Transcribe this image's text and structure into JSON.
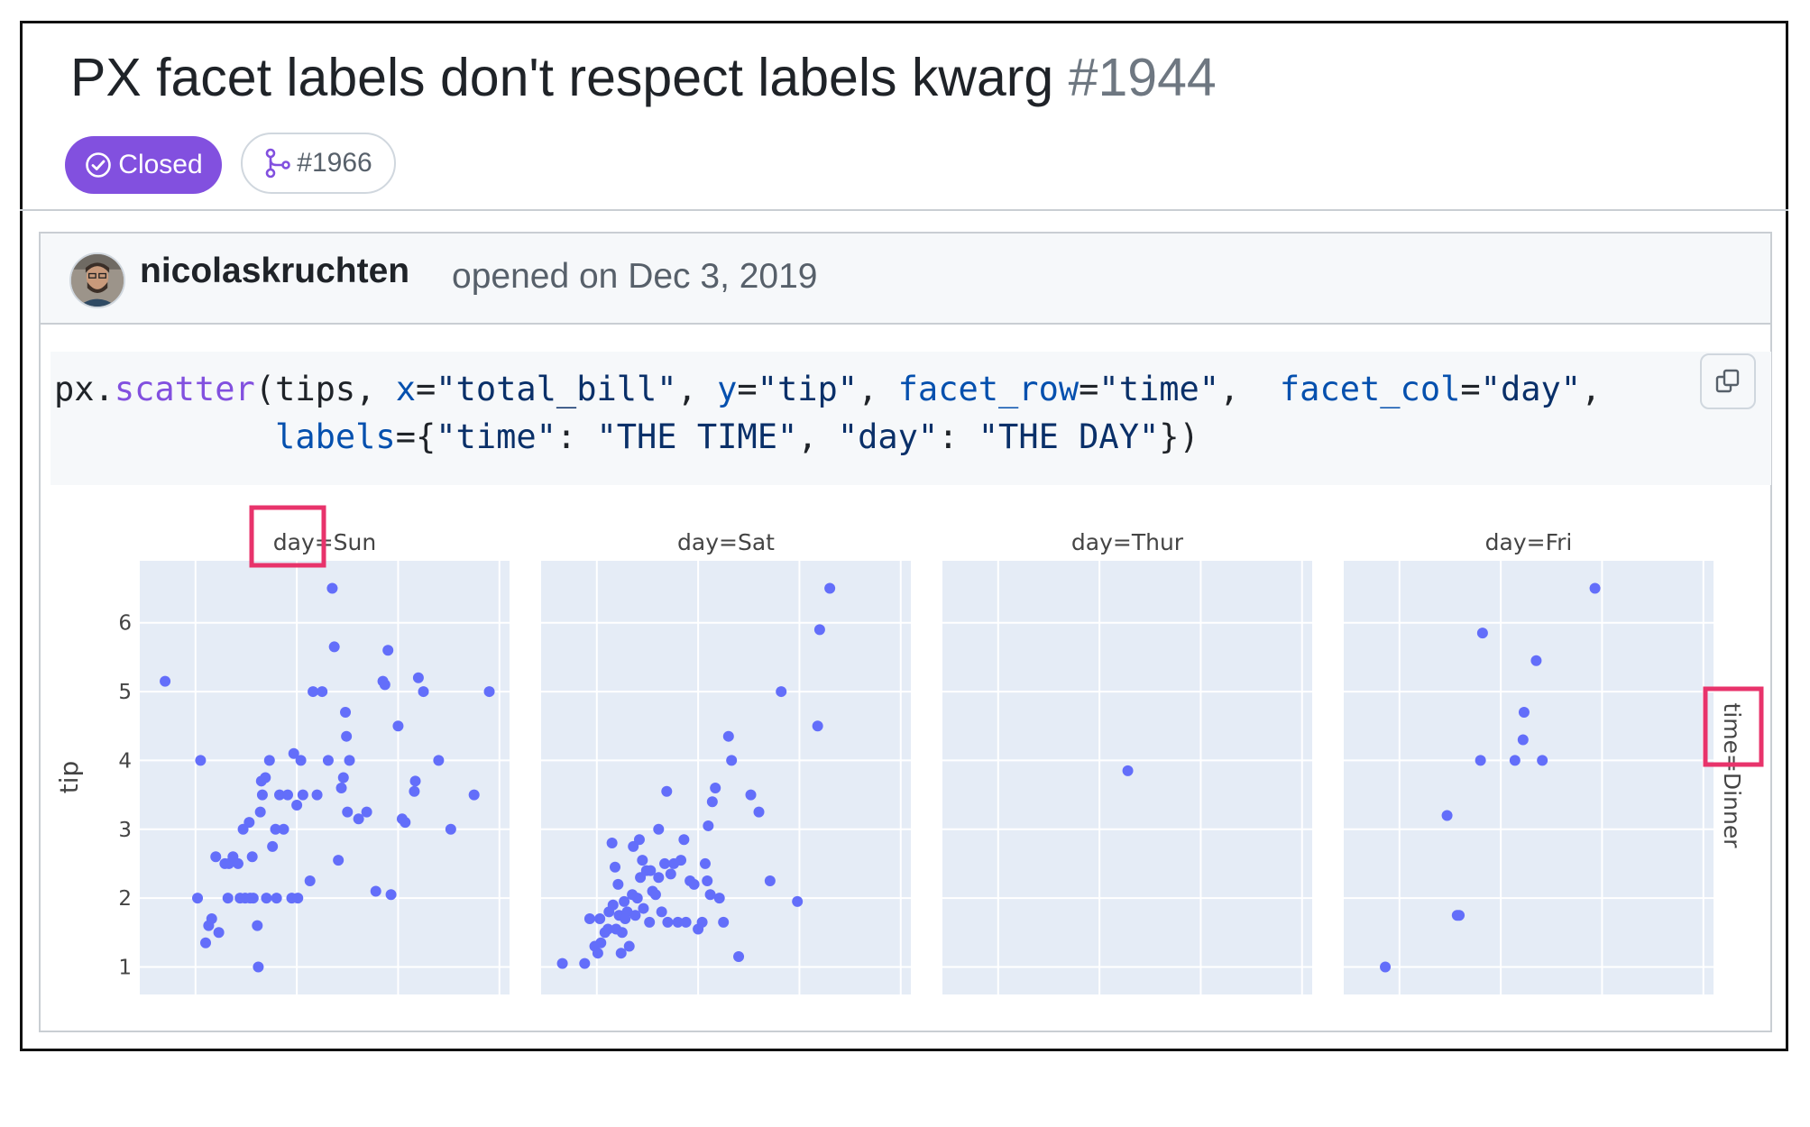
{
  "issue": {
    "title": "PX facet labels don't respect labels kwarg",
    "number": "#1944",
    "state": "Closed",
    "linked_pr": "#1966"
  },
  "comment": {
    "author": "nicolaskruchten",
    "opened_text": "opened on Dec 3, 2019"
  },
  "code": {
    "line1": [
      {
        "t": "px.",
        "c": ""
      },
      {
        "t": "scatter",
        "c": "fn"
      },
      {
        "t": "(tips, ",
        "c": ""
      },
      {
        "t": "x",
        "c": "attr"
      },
      {
        "t": "=",
        "c": ""
      },
      {
        "t": "\"total_bill\"",
        "c": "str"
      },
      {
        "t": ", ",
        "c": ""
      },
      {
        "t": "y",
        "c": "attr"
      },
      {
        "t": "=",
        "c": ""
      },
      {
        "t": "\"tip\"",
        "c": "str"
      },
      {
        "t": ", ",
        "c": ""
      },
      {
        "t": "facet_row",
        "c": "attr"
      },
      {
        "t": "=",
        "c": ""
      },
      {
        "t": "\"time\"",
        "c": "str"
      },
      {
        "t": ",  ",
        "c": ""
      },
      {
        "t": "facet_col",
        "c": "attr"
      },
      {
        "t": "=",
        "c": ""
      },
      {
        "t": "\"day\"",
        "c": "str"
      },
      {
        "t": ",",
        "c": ""
      }
    ],
    "line2": [
      {
        "t": "           ",
        "c": ""
      },
      {
        "t": "labels",
        "c": "attr"
      },
      {
        "t": "={",
        "c": ""
      },
      {
        "t": "\"time\"",
        "c": "str"
      },
      {
        "t": ": ",
        "c": ""
      },
      {
        "t": "\"THE TIME\"",
        "c": "str"
      },
      {
        "t": ", ",
        "c": ""
      },
      {
        "t": "\"day\"",
        "c": "str"
      },
      {
        "t": ": ",
        "c": ""
      },
      {
        "t": "\"THE DAY\"",
        "c": "str"
      },
      {
        "t": "})",
        "c": ""
      }
    ]
  },
  "colors": {
    "accent": "#8250df",
    "plot_bg": "#e5ecf6",
    "marker": "#636efa",
    "highlight": "#e8336b"
  },
  "icons": {
    "state": "check-circle-icon",
    "pr": "git-pull-request-icon",
    "copy": "copy-icon"
  },
  "chart_data": {
    "type": "scatter",
    "ylabel": "tip",
    "row_label": "time=Dinner",
    "ylim": [
      0.6,
      6.9
    ],
    "yticks": [
      "1",
      "2",
      "3",
      "4",
      "5",
      "6"
    ],
    "facets": [
      {
        "title": "day=Sun",
        "points": [
          [
            17,
            5.15
          ],
          [
            20.5,
            4
          ],
          [
            21,
            1.35
          ],
          [
            21.3,
            1.6
          ],
          [
            21.6,
            1.7
          ],
          [
            22,
            2.6
          ],
          [
            20.2,
            2
          ],
          [
            23.3,
            2.5
          ],
          [
            23.7,
            2.6
          ],
          [
            24.2,
            2.5
          ],
          [
            24.9,
            2
          ],
          [
            25.3,
            3.1
          ],
          [
            25.7,
            2
          ],
          [
            26.1,
            1.6
          ],
          [
            26.5,
            3.7
          ],
          [
            27,
            2
          ],
          [
            27.3,
            4
          ],
          [
            27.6,
            2.75
          ],
          [
            27.9,
            3
          ],
          [
            28.3,
            3.5
          ],
          [
            28.7,
            3
          ],
          [
            29.1,
            3.5
          ],
          [
            29.5,
            2
          ],
          [
            30.1,
            2
          ],
          [
            30.6,
            3.5
          ],
          [
            31.3,
            2.25
          ],
          [
            31.6,
            5
          ],
          [
            32,
            3.5
          ],
          [
            32.5,
            5
          ],
          [
            33.1,
            4
          ],
          [
            33.5,
            6.5
          ],
          [
            33.7,
            5.65
          ],
          [
            34.1,
            2.55
          ],
          [
            34.4,
            3.6
          ],
          [
            34.6,
            3.75
          ],
          [
            34.9,
            4.35
          ],
          [
            35.2,
            4
          ],
          [
            36.1,
            3.15
          ],
          [
            37.8,
            2.1
          ],
          [
            38.5,
            5.15
          ],
          [
            38.7,
            5.1
          ],
          [
            39,
            5.6
          ],
          [
            39.3,
            2.05
          ],
          [
            40,
            4.5
          ],
          [
            40.4,
            3.15
          ],
          [
            40.7,
            3.1
          ],
          [
            41.7,
            3.7
          ],
          [
            42,
            5.2
          ],
          [
            42.5,
            5
          ],
          [
            41.6,
            3.55
          ],
          [
            44,
            4
          ],
          [
            45.2,
            3
          ],
          [
            47.5,
            3.5
          ],
          [
            49,
            5
          ],
          [
            28,
            2
          ],
          [
            30.4,
            4
          ],
          [
            35,
            3.25
          ],
          [
            26.6,
            3.5
          ],
          [
            26.4,
            3.25
          ],
          [
            25.6,
            2.6
          ],
          [
            24.7,
            3
          ],
          [
            22.9,
            2.5
          ],
          [
            23.2,
            2
          ],
          [
            24.4,
            2
          ],
          [
            25.4,
            2
          ],
          [
            26.9,
            3.75
          ],
          [
            36.9,
            3.25
          ],
          [
            34.8,
            4.7
          ],
          [
            30,
            3.35
          ],
          [
            29.7,
            4.1
          ],
          [
            22.3,
            1.5
          ],
          [
            26.2,
            1
          ]
        ]
      },
      {
        "title": "day=Sat",
        "points": [
          [
            16.6,
            1.05
          ],
          [
            18.8,
            1.05
          ],
          [
            19.8,
            1.3
          ],
          [
            20.1,
            1.2
          ],
          [
            20.4,
            1.35
          ],
          [
            20.8,
            1.5
          ],
          [
            21.1,
            1.55
          ],
          [
            21.2,
            1.8
          ],
          [
            21.6,
            1.9
          ],
          [
            21.9,
            1.55
          ],
          [
            22.2,
            1.75
          ],
          [
            22.5,
            1.5
          ],
          [
            22.7,
            1.95
          ],
          [
            23,
            1.8
          ],
          [
            23.2,
            1.3
          ],
          [
            23.5,
            2.05
          ],
          [
            23.8,
            1.75
          ],
          [
            24,
            2
          ],
          [
            24.3,
            2.3
          ],
          [
            24.6,
            1.85
          ],
          [
            24.9,
            2.4
          ],
          [
            25.2,
            1.65
          ],
          [
            25.5,
            2.1
          ],
          [
            25.8,
            2.05
          ],
          [
            26.1,
            2.3
          ],
          [
            26.4,
            1.8
          ],
          [
            26.7,
            2.5
          ],
          [
            27,
            1.65
          ],
          [
            27.3,
            2.35
          ],
          [
            27.6,
            2.5
          ],
          [
            28,
            1.65
          ],
          [
            28.3,
            2.55
          ],
          [
            28.8,
            1.65
          ],
          [
            29.2,
            2.25
          ],
          [
            29.6,
            2.2
          ],
          [
            30,
            1.55
          ],
          [
            30.4,
            1.65
          ],
          [
            30.7,
            2.5
          ],
          [
            31,
            3.05
          ],
          [
            31.4,
            3.4
          ],
          [
            31.7,
            3.6
          ],
          [
            32.1,
            2
          ],
          [
            32.5,
            1.65
          ],
          [
            33,
            4.35
          ],
          [
            33.3,
            4
          ],
          [
            34,
            1.15
          ],
          [
            35.2,
            3.5
          ],
          [
            36,
            3.25
          ],
          [
            37.1,
            2.25
          ],
          [
            38.2,
            5
          ],
          [
            39.8,
            1.95
          ],
          [
            41.8,
            4.5
          ],
          [
            42,
            5.9
          ],
          [
            43,
            6.5
          ],
          [
            22.4,
            1.2
          ],
          [
            21.5,
            2.8
          ],
          [
            23.6,
            2.75
          ],
          [
            24.2,
            2.85
          ],
          [
            26.1,
            3
          ],
          [
            28.6,
            2.85
          ],
          [
            30.9,
            2.25
          ],
          [
            31.2,
            2.05
          ],
          [
            25.3,
            2.4
          ],
          [
            26.9,
            3.55
          ],
          [
            22.8,
            1.7
          ],
          [
            24.5,
            2.55
          ],
          [
            20.3,
            1.7
          ],
          [
            19.3,
            1.7
          ],
          [
            22.1,
            2.2
          ],
          [
            21.8,
            2.45
          ]
        ]
      },
      {
        "title": "day=Thur",
        "points": [
          [
            32.8,
            3.85
          ]
        ]
      },
      {
        "title": "day=Fri",
        "points": [
          [
            18.6,
            1
          ],
          [
            24.7,
            3.2
          ],
          [
            25.7,
            1.75
          ],
          [
            25.9,
            1.75
          ],
          [
            28,
            4
          ],
          [
            28.2,
            5.85
          ],
          [
            31.4,
            4
          ],
          [
            32.2,
            4.3
          ],
          [
            32.3,
            4.7
          ],
          [
            33.5,
            5.45
          ],
          [
            34.1,
            4
          ],
          [
            39.3,
            6.5
          ]
        ]
      }
    ]
  }
}
